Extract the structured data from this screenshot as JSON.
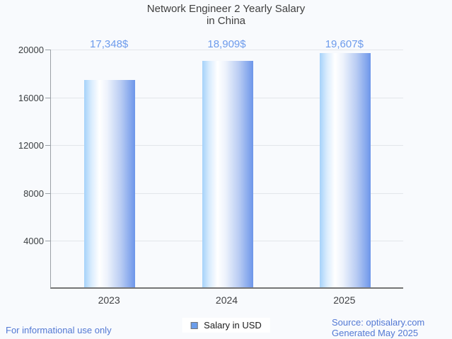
{
  "page": {
    "background": "#f8fafd",
    "footer_left": "For informational use only",
    "footer_right_line1": "Source: optisalary.com",
    "footer_right_line2": "Generated May 2025",
    "footer_text_color": "#5379d4"
  },
  "legend": {
    "label": "Salary in USD",
    "swatch_color": "#6b9deb"
  },
  "chart_data": {
    "type": "bar",
    "title_line1": "Network Engineer 2 Yearly Salary",
    "title_line2": "in China",
    "categories": [
      "2023",
      "2024",
      "2025"
    ],
    "values": [
      17348,
      18909,
      19607
    ],
    "value_labels": [
      "17,348$",
      "18,909$",
      "19,607$"
    ],
    "series_name": "Salary in USD",
    "xlabel": "",
    "ylabel": "",
    "ylim": [
      0,
      20000
    ],
    "yticks": [
      4000,
      8000,
      12000,
      16000,
      20000
    ],
    "grid": "horizontal",
    "legend_position": "bottom-center",
    "colors": {
      "bar_gradient_left": "#a5d2fa",
      "bar_gradient_mid": "#ffffff",
      "bar_gradient_right": "#6d96ea",
      "value_label": "#6d9bec",
      "axis_text": "#3f4043",
      "title": "#3f3f3f",
      "gridline": "#e3e6ea"
    }
  }
}
